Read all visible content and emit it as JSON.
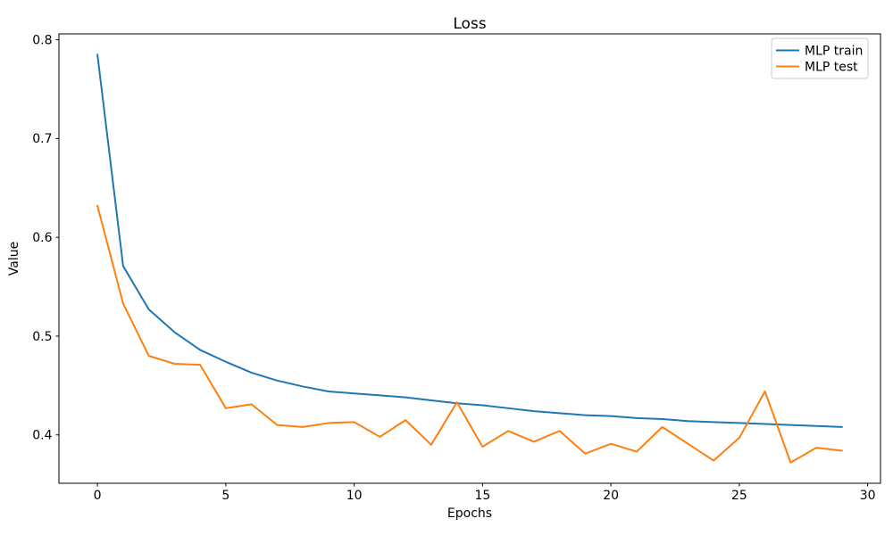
{
  "chart_data": {
    "type": "line",
    "title": "Loss",
    "xlabel": "Epochs",
    "ylabel": "Value",
    "grid": false,
    "legend_position": "upper right",
    "background_color": "#ffffff",
    "axis_color": "#000000",
    "legend_border_color": "#cccccc",
    "xticks": [
      0,
      5,
      10,
      15,
      20,
      25,
      30
    ],
    "yticks": [
      0.4,
      0.5,
      0.6,
      0.7,
      0.8
    ],
    "xlim": [
      -1.5,
      30.5
    ],
    "ylim": [
      0.351,
      0.806
    ],
    "x": [
      0,
      1,
      2,
      3,
      4,
      5,
      6,
      7,
      8,
      9,
      10,
      11,
      12,
      13,
      14,
      15,
      16,
      17,
      18,
      19,
      20,
      21,
      22,
      23,
      24,
      25,
      26,
      27,
      28,
      29
    ],
    "series": [
      {
        "name": "MLP train",
        "color": "#1f77b4",
        "values": [
          0.785,
          0.571,
          0.527,
          0.504,
          0.486,
          0.474,
          0.463,
          0.455,
          0.449,
          0.444,
          0.442,
          0.44,
          0.438,
          0.435,
          0.432,
          0.43,
          0.427,
          0.424,
          0.422,
          0.42,
          0.419,
          0.417,
          0.416,
          0.414,
          0.413,
          0.412,
          0.411,
          0.41,
          0.409,
          0.408
        ]
      },
      {
        "name": "MLP test",
        "color": "#ff7f0e",
        "values": [
          0.632,
          0.533,
          0.48,
          0.472,
          0.471,
          0.427,
          0.431,
          0.41,
          0.408,
          0.412,
          0.413,
          0.398,
          0.415,
          0.39,
          0.433,
          0.388,
          0.404,
          0.393,
          0.404,
          0.381,
          0.391,
          0.383,
          0.408,
          0.391,
          0.374,
          0.397,
          0.444,
          0.372,
          0.387,
          0.384
        ]
      }
    ]
  }
}
